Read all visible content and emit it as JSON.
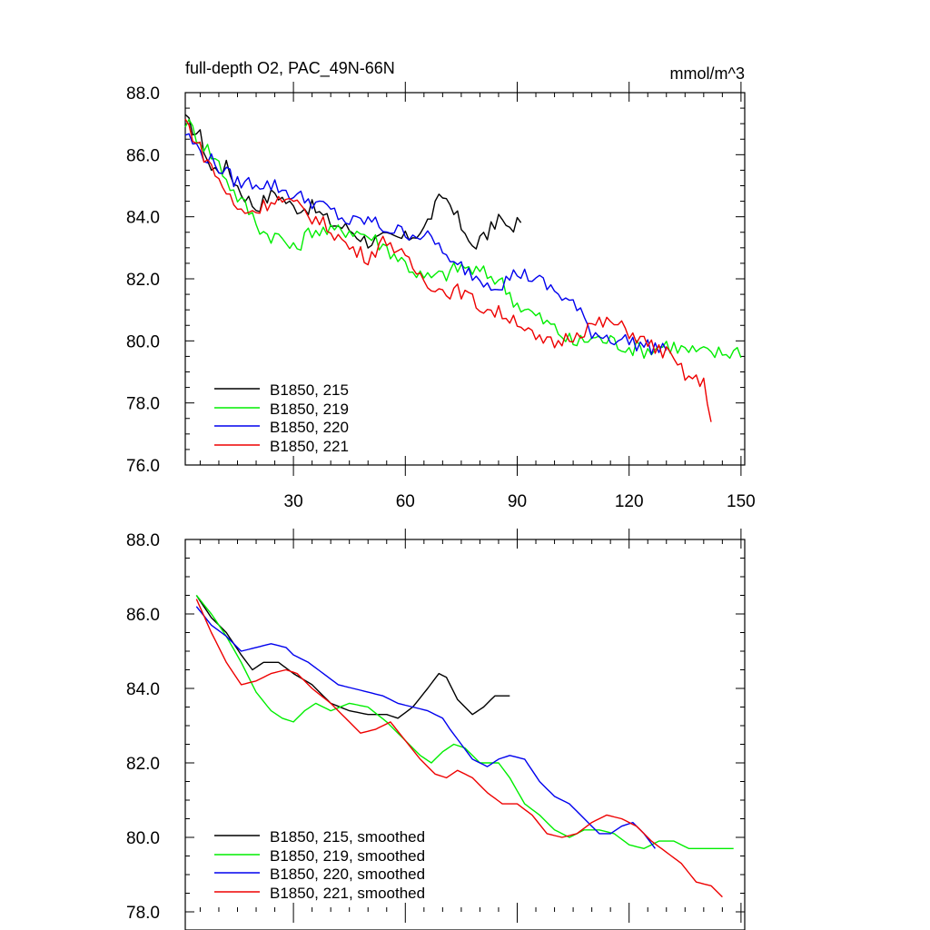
{
  "chart_data": [
    {
      "type": "line",
      "title": "full-depth O2, PAC_49N-66N",
      "units": "mmol/m^3",
      "xlim": [
        1,
        151
      ],
      "ylim": [
        76.0,
        88.0
      ],
      "xticks": [
        30,
        60,
        90,
        120,
        150
      ],
      "xtick_labels": [
        "30",
        "60",
        "90",
        "120",
        "150"
      ],
      "yticks": [
        76,
        78,
        80,
        82,
        84,
        86,
        88
      ],
      "ytick_labels": [
        "76.0",
        "78.0",
        "80.0",
        "82.0",
        "84.0",
        "86.0",
        "88.0"
      ],
      "legend_position": "bottom-left",
      "series": [
        {
          "name": "B1850, 215",
          "color": "#000000",
          "noise": 0.25,
          "points": [
            [
              1,
              87.1
            ],
            [
              5,
              86.6
            ],
            [
              8,
              85.5
            ],
            [
              12,
              85.6
            ],
            [
              16,
              84.8
            ],
            [
              20,
              84.3
            ],
            [
              25,
              84.8
            ],
            [
              30,
              84.3
            ],
            [
              35,
              84.3
            ],
            [
              40,
              83.8
            ],
            [
              45,
              83.6
            ],
            [
              50,
              83.2
            ],
            [
              55,
              83.3
            ],
            [
              60,
              83.3
            ],
            [
              65,
              83.6
            ],
            [
              68,
              84.3
            ],
            [
              70,
              84.7
            ],
            [
              73,
              84.3
            ],
            [
              76,
              83.3
            ],
            [
              78,
              83.1
            ],
            [
              82,
              83.4
            ],
            [
              85,
              84.0
            ],
            [
              88,
              83.5
            ],
            [
              91,
              84.0
            ]
          ]
        },
        {
          "name": "B1850, 219",
          "color": "#00ee00",
          "noise": 0.28,
          "points": [
            [
              1,
              87.1
            ],
            [
              5,
              86.5
            ],
            [
              10,
              85.7
            ],
            [
              14,
              84.8
            ],
            [
              18,
              84.2
            ],
            [
              22,
              83.5
            ],
            [
              27,
              83.3
            ],
            [
              30,
              82.9
            ],
            [
              35,
              83.6
            ],
            [
              40,
              83.5
            ],
            [
              45,
              83.6
            ],
            [
              50,
              83.4
            ],
            [
              55,
              83.0
            ],
            [
              60,
              82.5
            ],
            [
              65,
              82.0
            ],
            [
              70,
              82.1
            ],
            [
              75,
              82.4
            ],
            [
              80,
              82.2
            ],
            [
              85,
              82.0
            ],
            [
              90,
              81.2
            ],
            [
              95,
              80.8
            ],
            [
              100,
              80.4
            ],
            [
              105,
              79.9
            ],
            [
              110,
              80.1
            ],
            [
              115,
              80.0
            ],
            [
              120,
              79.8
            ],
            [
              125,
              79.7
            ],
            [
              130,
              79.9
            ],
            [
              135,
              79.7
            ],
            [
              140,
              79.6
            ],
            [
              145,
              79.6
            ],
            [
              150,
              79.7
            ]
          ]
        },
        {
          "name": "B1850, 220",
          "color": "#0000ee",
          "noise": 0.25,
          "points": [
            [
              1,
              86.7
            ],
            [
              5,
              86.1
            ],
            [
              10,
              85.6
            ],
            [
              15,
              85.1
            ],
            [
              20,
              85.1
            ],
            [
              25,
              85.0
            ],
            [
              30,
              84.7
            ],
            [
              35,
              84.5
            ],
            [
              40,
              84.2
            ],
            [
              45,
              83.8
            ],
            [
              50,
              83.9
            ],
            [
              55,
              83.6
            ],
            [
              60,
              83.5
            ],
            [
              65,
              83.4
            ],
            [
              70,
              83.0
            ],
            [
              72,
              82.4
            ],
            [
              75,
              82.4
            ],
            [
              80,
              82.0
            ],
            [
              85,
              81.8
            ],
            [
              90,
              82.2
            ],
            [
              95,
              82.0
            ],
            [
              100,
              81.6
            ],
            [
              105,
              81.2
            ],
            [
              110,
              80.3
            ],
            [
              115,
              80.1
            ],
            [
              120,
              80.0
            ],
            [
              125,
              79.8
            ],
            [
              130,
              79.8
            ]
          ]
        },
        {
          "name": "B1850, 221",
          "color": "#ee0000",
          "noise": 0.25,
          "points": [
            [
              1,
              87.1
            ],
            [
              5,
              86.2
            ],
            [
              10,
              85.2
            ],
            [
              15,
              84.2
            ],
            [
              20,
              84.2
            ],
            [
              25,
              84.6
            ],
            [
              30,
              84.4
            ],
            [
              35,
              84.0
            ],
            [
              40,
              83.6
            ],
            [
              45,
              83.0
            ],
            [
              50,
              82.7
            ],
            [
              55,
              83.3
            ],
            [
              60,
              82.6
            ],
            [
              65,
              82.0
            ],
            [
              70,
              81.6
            ],
            [
              75,
              81.6
            ],
            [
              80,
              81.1
            ],
            [
              85,
              80.9
            ],
            [
              90,
              80.7
            ],
            [
              95,
              80.0
            ],
            [
              100,
              79.9
            ],
            [
              105,
              80.2
            ],
            [
              110,
              80.5
            ],
            [
              115,
              80.6
            ],
            [
              120,
              80.3
            ],
            [
              125,
              79.9
            ],
            [
              130,
              79.6
            ],
            [
              135,
              78.9
            ],
            [
              140,
              78.6
            ],
            [
              142,
              77.6
            ]
          ]
        }
      ]
    },
    {
      "type": "line",
      "xlim": [
        1,
        151
      ],
      "ylim": [
        78.0,
        88.0
      ],
      "xticks": [
        30,
        60,
        90,
        120,
        150
      ],
      "yticks": [
        78,
        80,
        82,
        84,
        86,
        88
      ],
      "ytick_labels": [
        "78.0",
        "80.0",
        "82.0",
        "84.0",
        "86.0",
        "88.0"
      ],
      "legend_position": "bottom-left",
      "series": [
        {
          "name": "B1850, 215, smoothed",
          "color": "#000000",
          "noise": 0,
          "points": [
            [
              4,
              86.5
            ],
            [
              8,
              85.9
            ],
            [
              12,
              85.5
            ],
            [
              16,
              84.9
            ],
            [
              19,
              84.5
            ],
            [
              22,
              84.7
            ],
            [
              26,
              84.7
            ],
            [
              30,
              84.4
            ],
            [
              35,
              84.1
            ],
            [
              40,
              83.6
            ],
            [
              45,
              83.4
            ],
            [
              50,
              83.3
            ],
            [
              55,
              83.3
            ],
            [
              58,
              83.2
            ],
            [
              62,
              83.5
            ],
            [
              66,
              84.0
            ],
            [
              69,
              84.4
            ],
            [
              71,
              84.3
            ],
            [
              74,
              83.7
            ],
            [
              78,
              83.3
            ],
            [
              81,
              83.5
            ],
            [
              84,
              83.8
            ],
            [
              88,
              83.8
            ]
          ]
        },
        {
          "name": "B1850, 219",
          "label": "B1850, 219, smoothed",
          "color": "#00ee00",
          "noise": 0,
          "points": [
            [
              4,
              86.5
            ],
            [
              8,
              86.0
            ],
            [
              12,
              85.4
            ],
            [
              16,
              84.7
            ],
            [
              20,
              83.9
            ],
            [
              24,
              83.4
            ],
            [
              27,
              83.2
            ],
            [
              30,
              83.1
            ],
            [
              33,
              83.4
            ],
            [
              36,
              83.6
            ],
            [
              40,
              83.4
            ],
            [
              45,
              83.6
            ],
            [
              50,
              83.5
            ],
            [
              55,
              83.1
            ],
            [
              60,
              82.6
            ],
            [
              64,
              82.2
            ],
            [
              67,
              82.0
            ],
            [
              70,
              82.3
            ],
            [
              73,
              82.5
            ],
            [
              76,
              82.4
            ],
            [
              80,
              82.0
            ],
            [
              85,
              82.0
            ],
            [
              88,
              81.6
            ],
            [
              92,
              80.9
            ],
            [
              96,
              80.6
            ],
            [
              100,
              80.2
            ],
            [
              104,
              80.0
            ],
            [
              108,
              80.2
            ],
            [
              112,
              80.2
            ],
            [
              116,
              80.1
            ],
            [
              120,
              79.8
            ],
            [
              124,
              79.7
            ],
            [
              128,
              79.9
            ],
            [
              132,
              79.9
            ],
            [
              136,
              79.7
            ],
            [
              140,
              79.7
            ],
            [
              144,
              79.7
            ],
            [
              148,
              79.7
            ]
          ]
        },
        {
          "name": "B1850, 220",
          "label": "B1850, 220, smoothed",
          "color": "#0000ee",
          "noise": 0,
          "points": [
            [
              4,
              86.2
            ],
            [
              8,
              85.7
            ],
            [
              12,
              85.4
            ],
            [
              16,
              85.0
            ],
            [
              20,
              85.1
            ],
            [
              24,
              85.2
            ],
            [
              28,
              85.1
            ],
            [
              30,
              84.9
            ],
            [
              34,
              84.7
            ],
            [
              38,
              84.4
            ],
            [
              42,
              84.1
            ],
            [
              46,
              84.0
            ],
            [
              50,
              83.9
            ],
            [
              54,
              83.8
            ],
            [
              58,
              83.6
            ],
            [
              62,
              83.5
            ],
            [
              66,
              83.4
            ],
            [
              70,
              83.2
            ],
            [
              72,
              82.9
            ],
            [
              75,
              82.5
            ],
            [
              78,
              82.1
            ],
            [
              82,
              81.9
            ],
            [
              85,
              82.1
            ],
            [
              88,
              82.2
            ],
            [
              92,
              82.1
            ],
            [
              96,
              81.5
            ],
            [
              100,
              81.1
            ],
            [
              104,
              80.9
            ],
            [
              108,
              80.5
            ],
            [
              112,
              80.1
            ],
            [
              115,
              80.1
            ],
            [
              118,
              80.3
            ],
            [
              121,
              80.4
            ],
            [
              124,
              80.1
            ],
            [
              127,
              79.7
            ]
          ]
        },
        {
          "name": "B1850, 221",
          "label": "B1850, 221, smoothed",
          "color": "#ee0000",
          "noise": 0,
          "points": [
            [
              4,
              86.4
            ],
            [
              8,
              85.5
            ],
            [
              12,
              84.7
            ],
            [
              16,
              84.1
            ],
            [
              20,
              84.2
            ],
            [
              24,
              84.4
            ],
            [
              28,
              84.5
            ],
            [
              31,
              84.4
            ],
            [
              35,
              84.0
            ],
            [
              40,
              83.6
            ],
            [
              44,
              83.2
            ],
            [
              48,
              82.8
            ],
            [
              52,
              82.9
            ],
            [
              56,
              83.1
            ],
            [
              60,
              82.6
            ],
            [
              64,
              82.1
            ],
            [
              68,
              81.7
            ],
            [
              71,
              81.6
            ],
            [
              74,
              81.8
            ],
            [
              78,
              81.6
            ],
            [
              82,
              81.2
            ],
            [
              86,
              80.9
            ],
            [
              90,
              80.9
            ],
            [
              94,
              80.6
            ],
            [
              98,
              80.1
            ],
            [
              102,
              80.0
            ],
            [
              106,
              80.1
            ],
            [
              110,
              80.4
            ],
            [
              114,
              80.6
            ],
            [
              118,
              80.5
            ],
            [
              122,
              80.3
            ],
            [
              126,
              79.9
            ],
            [
              130,
              79.6
            ],
            [
              134,
              79.3
            ],
            [
              138,
              78.8
            ],
            [
              142,
              78.7
            ],
            [
              145,
              78.4
            ]
          ]
        }
      ]
    }
  ]
}
